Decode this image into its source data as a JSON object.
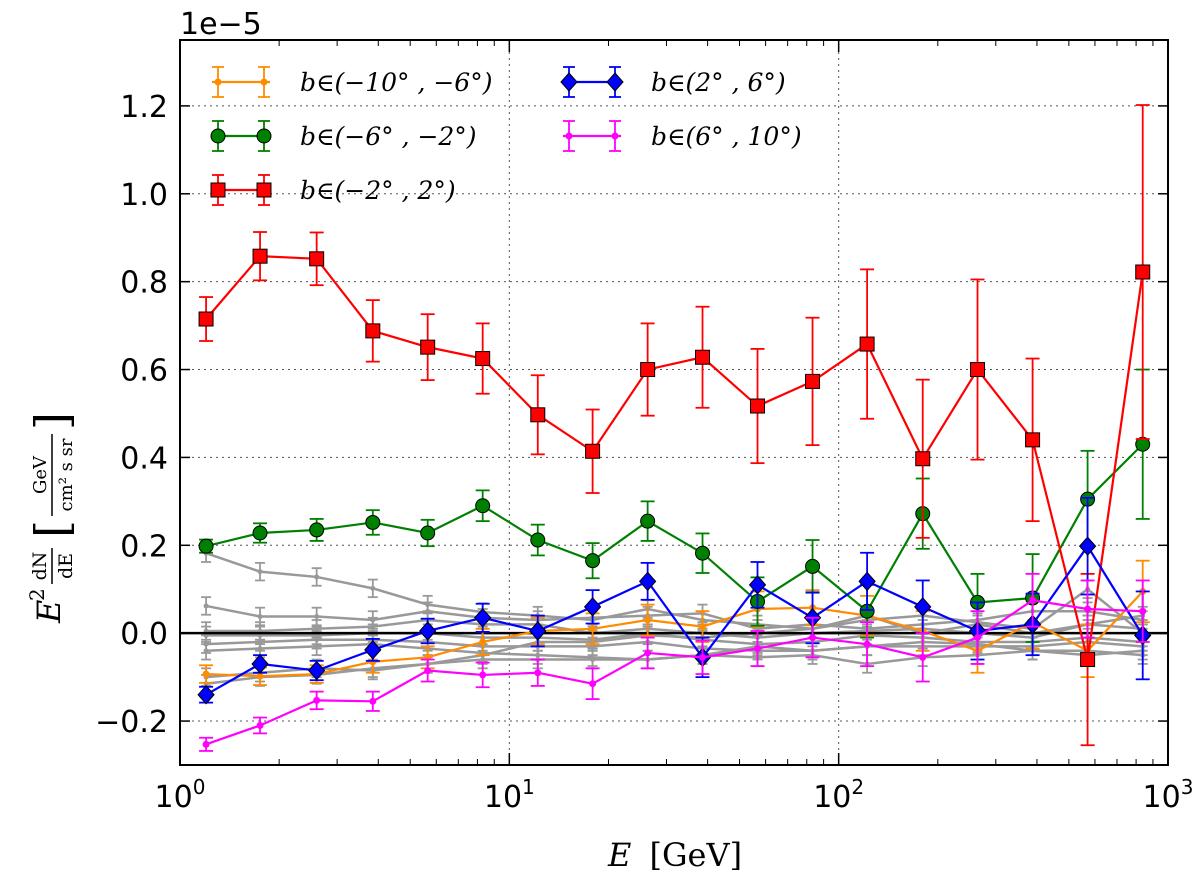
{
  "chart_data": {
    "type": "line",
    "title": "",
    "offset_label": "1e−5",
    "xlabel": {
      "var": "E",
      "unit": "[GeV]"
    },
    "ylabel": {
      "prefix": "E",
      "exp": "2",
      "num": "dN",
      "den": "dE",
      "unit_num": "GeV",
      "unit_den": "cm² s sr"
    },
    "xscale": "log",
    "xlim": [
      1,
      1000
    ],
    "ylim": [
      -0.3,
      1.35
    ],
    "grid": true,
    "x_ticks": [
      {
        "base": "10",
        "exp": "0",
        "value": 1
      },
      {
        "base": "10",
        "exp": "1",
        "value": 10
      },
      {
        "base": "10",
        "exp": "2",
        "value": 100
      },
      {
        "base": "10",
        "exp": "3",
        "value": 1000
      }
    ],
    "y_ticks": [
      {
        "label": "−0.2",
        "value": -0.2
      },
      {
        "label": "0.0",
        "value": 0.0
      },
      {
        "label": "0.2",
        "value": 0.2
      },
      {
        "label": "0.4",
        "value": 0.4
      },
      {
        "label": "0.6",
        "value": 0.6
      },
      {
        "label": "0.8",
        "value": 0.8
      },
      {
        "label": "1.0",
        "value": 1.0
      },
      {
        "label": "1.2",
        "value": 1.2
      }
    ],
    "x": [
      1.2,
      1.75,
      2.6,
      3.85,
      5.65,
      8.3,
      12.2,
      17.9,
      26.3,
      38.6,
      56.7,
      83.3,
      122,
      180,
      264,
      388,
      570,
      838
    ],
    "series": [
      {
        "name": "b∈(−10° , −6°)",
        "color": "#ff8c00",
        "marker": "dot",
        "values": [
          -0.093,
          -0.098,
          -0.093,
          -0.065,
          -0.055,
          -0.02,
          0.005,
          0.01,
          0.03,
          0.015,
          0.055,
          0.058,
          0.04,
          0.005,
          -0.04,
          0.025,
          -0.04,
          0.095
        ],
        "errors": [
          0.02,
          0.02,
          0.02,
          0.025,
          0.025,
          0.03,
          0.03,
          0.035,
          0.035,
          0.035,
          0.04,
          0.04,
          0.045,
          0.045,
          0.05,
          0.06,
          0.06,
          0.07
        ]
      },
      {
        "name": "b∈(−6° , −2°)",
        "color": "#008000",
        "marker": "circle",
        "values": [
          0.198,
          0.228,
          0.235,
          0.252,
          0.228,
          0.29,
          0.212,
          0.165,
          0.255,
          0.182,
          0.072,
          0.152,
          0.05,
          0.272,
          0.07,
          0.08,
          0.305,
          0.43
        ],
        "errors": [
          0.015,
          0.022,
          0.025,
          0.028,
          0.03,
          0.035,
          0.035,
          0.04,
          0.045,
          0.045,
          0.055,
          0.06,
          0.06,
          0.08,
          0.065,
          0.1,
          0.11,
          0.17
        ]
      },
      {
        "name": "b∈(−2° , 2°)",
        "color": "#ff0000",
        "marker": "square",
        "values": [
          0.715,
          0.858,
          0.852,
          0.688,
          0.651,
          0.625,
          0.497,
          0.414,
          0.6,
          0.628,
          0.517,
          0.573,
          0.658,
          0.397,
          0.6,
          0.44,
          -0.06,
          0.822
        ],
        "errors": [
          0.05,
          0.055,
          0.06,
          0.07,
          0.075,
          0.08,
          0.09,
          0.095,
          0.105,
          0.115,
          0.13,
          0.145,
          0.17,
          0.18,
          0.205,
          0.185,
          0.195,
          0.38
        ]
      },
      {
        "name": "b∈(2° , 6°)",
        "color": "#0000ff",
        "marker": "diamond",
        "values": [
          -0.14,
          -0.07,
          -0.085,
          -0.038,
          0.005,
          0.035,
          0.005,
          0.06,
          0.118,
          -0.055,
          0.11,
          0.035,
          0.118,
          0.06,
          0.005,
          0.02,
          0.198,
          -0.005
        ],
        "errors": [
          0.018,
          0.02,
          0.022,
          0.025,
          0.028,
          0.032,
          0.035,
          0.038,
          0.042,
          0.045,
          0.052,
          0.058,
          0.065,
          0.06,
          0.065,
          0.07,
          0.11,
          0.1
        ]
      },
      {
        "name": "b∈(6° , 10°)",
        "color": "#ff00ff",
        "marker": "dot",
        "values": [
          -0.253,
          -0.21,
          -0.153,
          -0.155,
          -0.085,
          -0.095,
          -0.09,
          -0.115,
          -0.045,
          -0.055,
          -0.035,
          -0.01,
          -0.025,
          -0.055,
          -0.01,
          0.075,
          0.055,
          0.05
        ],
        "errors": [
          0.015,
          0.018,
          0.02,
          0.022,
          0.025,
          0.028,
          0.03,
          0.035,
          0.035,
          0.038,
          0.04,
          0.045,
          0.05,
          0.055,
          0.06,
          0.06,
          0.065,
          0.07
        ]
      }
    ],
    "background_series": {
      "color": "#999999",
      "values": [
        [
          0.182,
          0.14,
          0.128,
          0.102,
          0.065,
          0.048,
          0.04,
          0.03,
          0.055,
          0.03,
          0.02,
          0.01,
          0.03,
          0.04,
          0.025,
          0.01,
          0.1,
          0.0
        ],
        [
          0.062,
          0.038,
          0.038,
          0.03,
          0.05,
          0.035,
          0.03,
          0.035,
          0.04,
          0.045,
          0.01,
          0.02,
          0.01,
          0.02,
          0.03,
          0.05,
          0.05,
          0.03
        ],
        [
          0.005,
          0.005,
          0.01,
          0.015,
          0.03,
          0.02,
          0.02,
          0.0,
          0.01,
          0.0,
          -0.01,
          0.0,
          0.005,
          0.01,
          0.0,
          -0.01,
          0.02,
          0.01
        ],
        [
          -0.005,
          -0.005,
          -0.005,
          0.0,
          0.0,
          -0.01,
          -0.01,
          -0.015,
          0.0,
          -0.015,
          -0.025,
          -0.02,
          -0.005,
          -0.01,
          -0.02,
          -0.02,
          -0.01,
          -0.02
        ],
        [
          -0.025,
          -0.02,
          -0.015,
          -0.015,
          -0.02,
          -0.03,
          -0.03,
          -0.03,
          -0.02,
          -0.035,
          -0.04,
          -0.04,
          -0.03,
          -0.03,
          -0.03,
          -0.03,
          -0.02,
          -0.03
        ],
        [
          -0.04,
          -0.035,
          -0.03,
          -0.025,
          -0.035,
          -0.045,
          -0.05,
          -0.055,
          -0.06,
          -0.05,
          -0.055,
          -0.05,
          -0.07,
          -0.055,
          -0.05,
          -0.04,
          -0.05,
          -0.04
        ],
        [
          -0.1,
          -0.09,
          -0.08,
          -0.085,
          -0.07,
          -0.06,
          -0.06,
          -0.06,
          -0.06,
          -0.05,
          -0.03,
          -0.04,
          -0.03,
          -0.02,
          -0.025,
          -0.04,
          -0.04,
          -0.05
        ],
        [
          -0.115,
          -0.1,
          -0.095,
          -0.08,
          -0.07,
          -0.05,
          -0.02,
          -0.02,
          -0.005,
          -0.01,
          0.0,
          0.01,
          0.04,
          0.0,
          0.02,
          0.0,
          0.02,
          0.04
        ]
      ],
      "error": 0.02
    },
    "legend": {
      "placement": "upper-left",
      "columns": 2
    }
  }
}
